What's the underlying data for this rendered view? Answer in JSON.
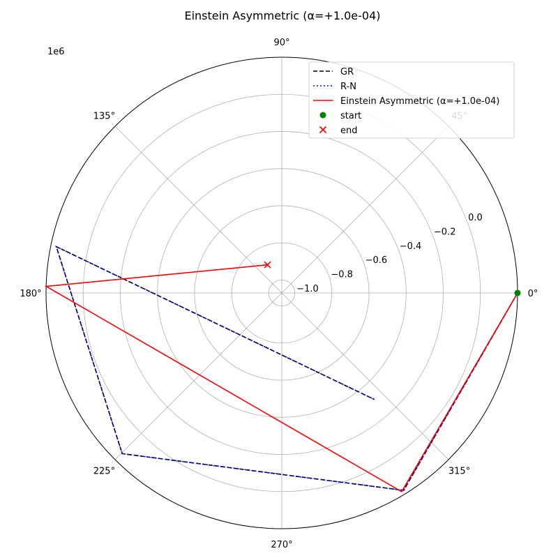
{
  "chart_data": {
    "type": "line",
    "projection": "polar",
    "title": "Einstein Asymmetric (α=+1.0e-04)",
    "offset_label": "1e6",
    "theta_tick_labels": [
      "0°",
      "45°",
      "90°",
      "135°",
      "180°",
      "225°",
      "270°",
      "315°"
    ],
    "theta_ticks_deg": [
      0,
      45,
      90,
      135,
      180,
      225,
      270,
      315
    ],
    "r_ticks": [
      -1.0,
      -0.8,
      -0.6,
      -0.4,
      -0.2,
      0.0
    ],
    "r_tick_labels": [
      "−1.0",
      "−0.8",
      "−0.6",
      "−0.4",
      "−0.2",
      "0.0"
    ],
    "rlim": [
      -1.07,
      0.2
    ],
    "grid": true,
    "legend_position": "upper right",
    "series": [
      {
        "name": "GR",
        "style": "dashed",
        "color": "#000000",
        "points": [
          {
            "theta_deg": 0,
            "r": 0.2
          },
          {
            "theta_deg": 301.7,
            "r": 0.18
          },
          {
            "theta_deg": 225.2,
            "r": 0.15
          },
          {
            "theta_deg": 168.4,
            "r": 0.17
          },
          {
            "theta_deg": 311.0,
            "r": -0.31
          }
        ]
      },
      {
        "name": "R-N",
        "style": "dotted",
        "color": "#0000ff",
        "points": [
          {
            "theta_deg": 0,
            "r": 0.2
          },
          {
            "theta_deg": 301.7,
            "r": 0.18
          },
          {
            "theta_deg": 225.2,
            "r": 0.15
          },
          {
            "theta_deg": 168.4,
            "r": 0.17
          },
          {
            "theta_deg": 311.0,
            "r": -0.31
          }
        ]
      },
      {
        "name": "Einstein Asymmetric (α=+1.0e-04)",
        "style": "solid",
        "color": "#ff0000",
        "points": [
          {
            "theta_deg": 0,
            "r": 0.2
          },
          {
            "theta_deg": 301.1,
            "r": 0.18
          },
          {
            "theta_deg": 178.4,
            "r": 0.2
          },
          {
            "theta_deg": 117.0,
            "r": -0.9
          }
        ]
      }
    ],
    "markers": [
      {
        "name": "start",
        "symbol": "circle",
        "color": "#008000",
        "theta_deg": 0,
        "r": 0.2
      },
      {
        "name": "end",
        "symbol": "x",
        "color": "#ff0000",
        "theta_deg": 117.0,
        "r": -0.9
      }
    ]
  }
}
